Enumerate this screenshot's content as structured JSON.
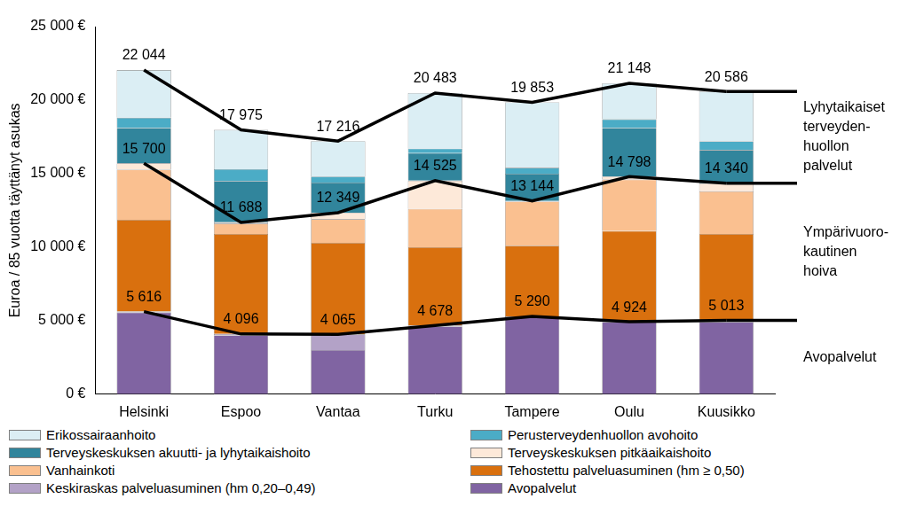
{
  "chart_data": {
    "type": "bar",
    "stacked": true,
    "grid": false,
    "y_label": "Euroa / 85 vuotta täyttänyt asukas",
    "categories": [
      "Helsinki",
      "Espoo",
      "Vantaa",
      "Turku",
      "Tampere",
      "Oulu",
      "Kuusikko"
    ],
    "ylim": [
      0,
      25000
    ],
    "yticks": [
      {
        "value": 0,
        "label": "0 €"
      },
      {
        "value": 5000,
        "label": "5 000 €"
      },
      {
        "value": 10000,
        "label": "10 000 €"
      },
      {
        "value": 15000,
        "label": "15 000 €"
      },
      {
        "value": 20000,
        "label": "20 000 €"
      },
      {
        "value": 25000,
        "label": "25 000 €"
      }
    ],
    "legend": "bottom",
    "series": [
      {
        "name": "Avopalvelut",
        "color": "#8064a2",
        "values": [
          5560,
          4000,
          3000,
          4600,
          5200,
          4900,
          4900
        ]
      },
      {
        "name": "Keskiraskas palveluasuminen (hm 0,20–0,49)",
        "color": "#b3a2c7",
        "values": [
          56,
          96,
          1065,
          78,
          90,
          24,
          113
        ]
      },
      {
        "name": "Tehostettu palveluasuminen (hm ≥ 0,50)",
        "color": "#d9700e",
        "values": [
          6250,
          6804,
          6235,
          5322,
          4810,
          6176,
          5887
        ]
      },
      {
        "name": "Vanhainkoti",
        "color": "#fac090",
        "values": [
          3400,
          700,
          1600,
          2600,
          3000,
          3500,
          2900
        ]
      },
      {
        "name": "Terveyskeskuksen pitkäaikaishoito",
        "color": "#fde9d9",
        "values": [
          434,
          88,
          449,
          1925,
          44,
          198,
          540
        ]
      },
      {
        "name": "Terveyskeskuksen akuutti- ja lyhytaikaishoito",
        "color": "#31859c",
        "values": [
          2400,
          2812,
          2051,
          1875,
          1856,
          3302,
          2260
        ]
      },
      {
        "name": "Perusterveydenhuollon avohoito",
        "color": "#4bacc6",
        "values": [
          700,
          800,
          400,
          300,
          400,
          600,
          600
        ]
      },
      {
        "name": "Erikossairaanhoito",
        "color": "#dbeef4",
        "values": [
          3244,
          2675,
          2416,
          3783,
          4453,
          2448,
          3386
        ]
      },
      {
        "name": "Lyhytaikaiset terveyden-huollon palvelut",
        "type": "line",
        "color": "#000000",
        "data_labels": true,
        "values": [
          22044,
          17975,
          17216,
          20483,
          19853,
          21148,
          20586
        ],
        "value_labels": [
          "22 044",
          "17 975",
          "17 216",
          "20 483",
          "19 853",
          "21 148",
          "20 586"
        ]
      },
      {
        "name": "Ympärivuoro-kautinen hoiva",
        "type": "line",
        "color": "#000000",
        "data_labels": true,
        "values": [
          15700,
          11688,
          12349,
          14525,
          13144,
          14798,
          14340
        ],
        "value_labels": [
          "15 700",
          "11 688",
          "12 349",
          "14 525",
          "13 144",
          "14 798",
          "14 340"
        ]
      },
      {
        "name": "Avopalvelut",
        "type": "line",
        "color": "#000000",
        "data_labels": true,
        "values": [
          5616,
          4096,
          4065,
          4678,
          5290,
          4924,
          5013
        ],
        "value_labels": [
          "5 616",
          "4 096",
          "4 065",
          "4 678",
          "5 290",
          "4 924",
          "5 013"
        ]
      }
    ]
  }
}
